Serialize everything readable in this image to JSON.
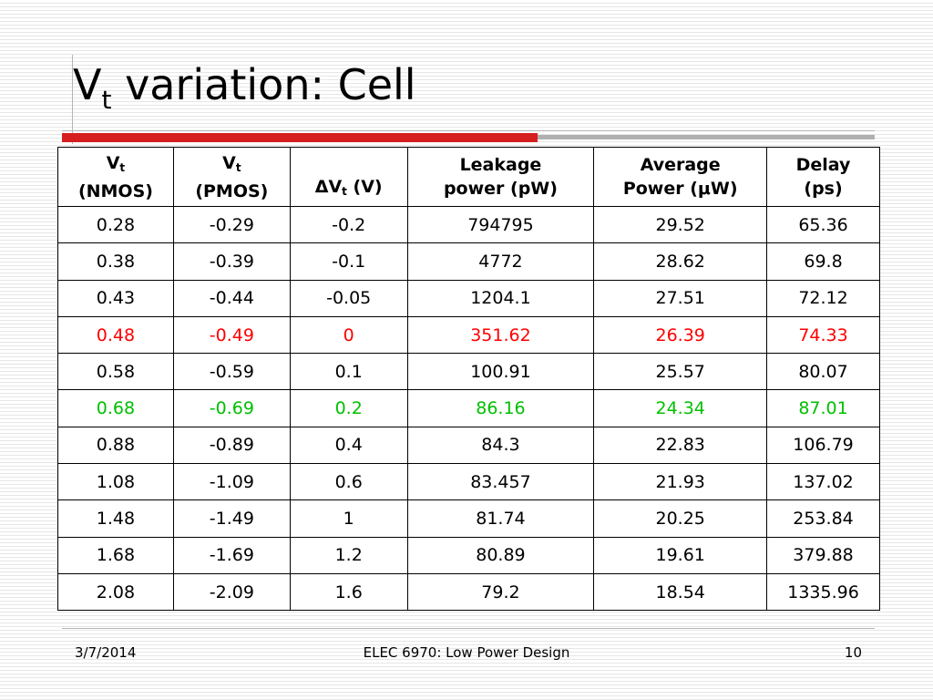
{
  "title": {
    "main": "V",
    "sub": "t",
    "rest": " variation: Cell"
  },
  "table": {
    "headers": [
      {
        "main": "V",
        "sub": "t",
        "line2": "(NMOS)"
      },
      {
        "main": "V",
        "sub": "t",
        "line2": "(PMOS)"
      },
      {
        "main": "ΔV",
        "sub": "t",
        "rest": " (V)"
      },
      {
        "line1": "Leakage",
        "line2": "power (pW)"
      },
      {
        "line1": "Average",
        "line2": "Power (μW)"
      },
      {
        "line1": "Delay",
        "line2": "(ps)"
      }
    ],
    "rows": [
      [
        "0.28",
        "-0.29",
        "-0.2",
        "794795",
        "29.52",
        "65.36"
      ],
      [
        "0.38",
        "-0.39",
        "-0.1",
        "4772",
        "28.62",
        "69.8"
      ],
      [
        "0.43",
        "-0.44",
        "-0.05",
        "1204.1",
        "27.51",
        "72.12"
      ],
      [
        "0.48",
        "-0.49",
        "0",
        "351.62",
        "26.39",
        "74.33"
      ],
      [
        "0.58",
        "-0.59",
        "0.1",
        "100.91",
        "25.57",
        "80.07"
      ],
      [
        "0.68",
        "-0.69",
        "0.2",
        "86.16",
        "24.34",
        "87.01"
      ],
      [
        "0.88",
        "-0.89",
        "0.4",
        "84.3",
        "22.83",
        "106.79"
      ],
      [
        "1.08",
        "-1.09",
        "0.6",
        "83.457",
        "21.93",
        "137.02"
      ],
      [
        "1.48",
        "-1.49",
        "1",
        "81.74",
        "20.25",
        "253.84"
      ],
      [
        "1.68",
        "-1.69",
        "1.2",
        "80.89",
        "19.61",
        "379.88"
      ],
      [
        "2.08",
        "-2.09",
        "1.6",
        "79.2",
        "18.54",
        "1335.96"
      ]
    ],
    "highlight_colors": {
      "red_row": "#ff0000",
      "green_row": "#00c000"
    }
  },
  "footer": {
    "date": "3/7/2014",
    "course": "ELEC 6970: Low Power Design",
    "page": "10"
  },
  "colors": {
    "accent_bar": "#d61f1f",
    "gray_bar": "#b0b0b0"
  }
}
